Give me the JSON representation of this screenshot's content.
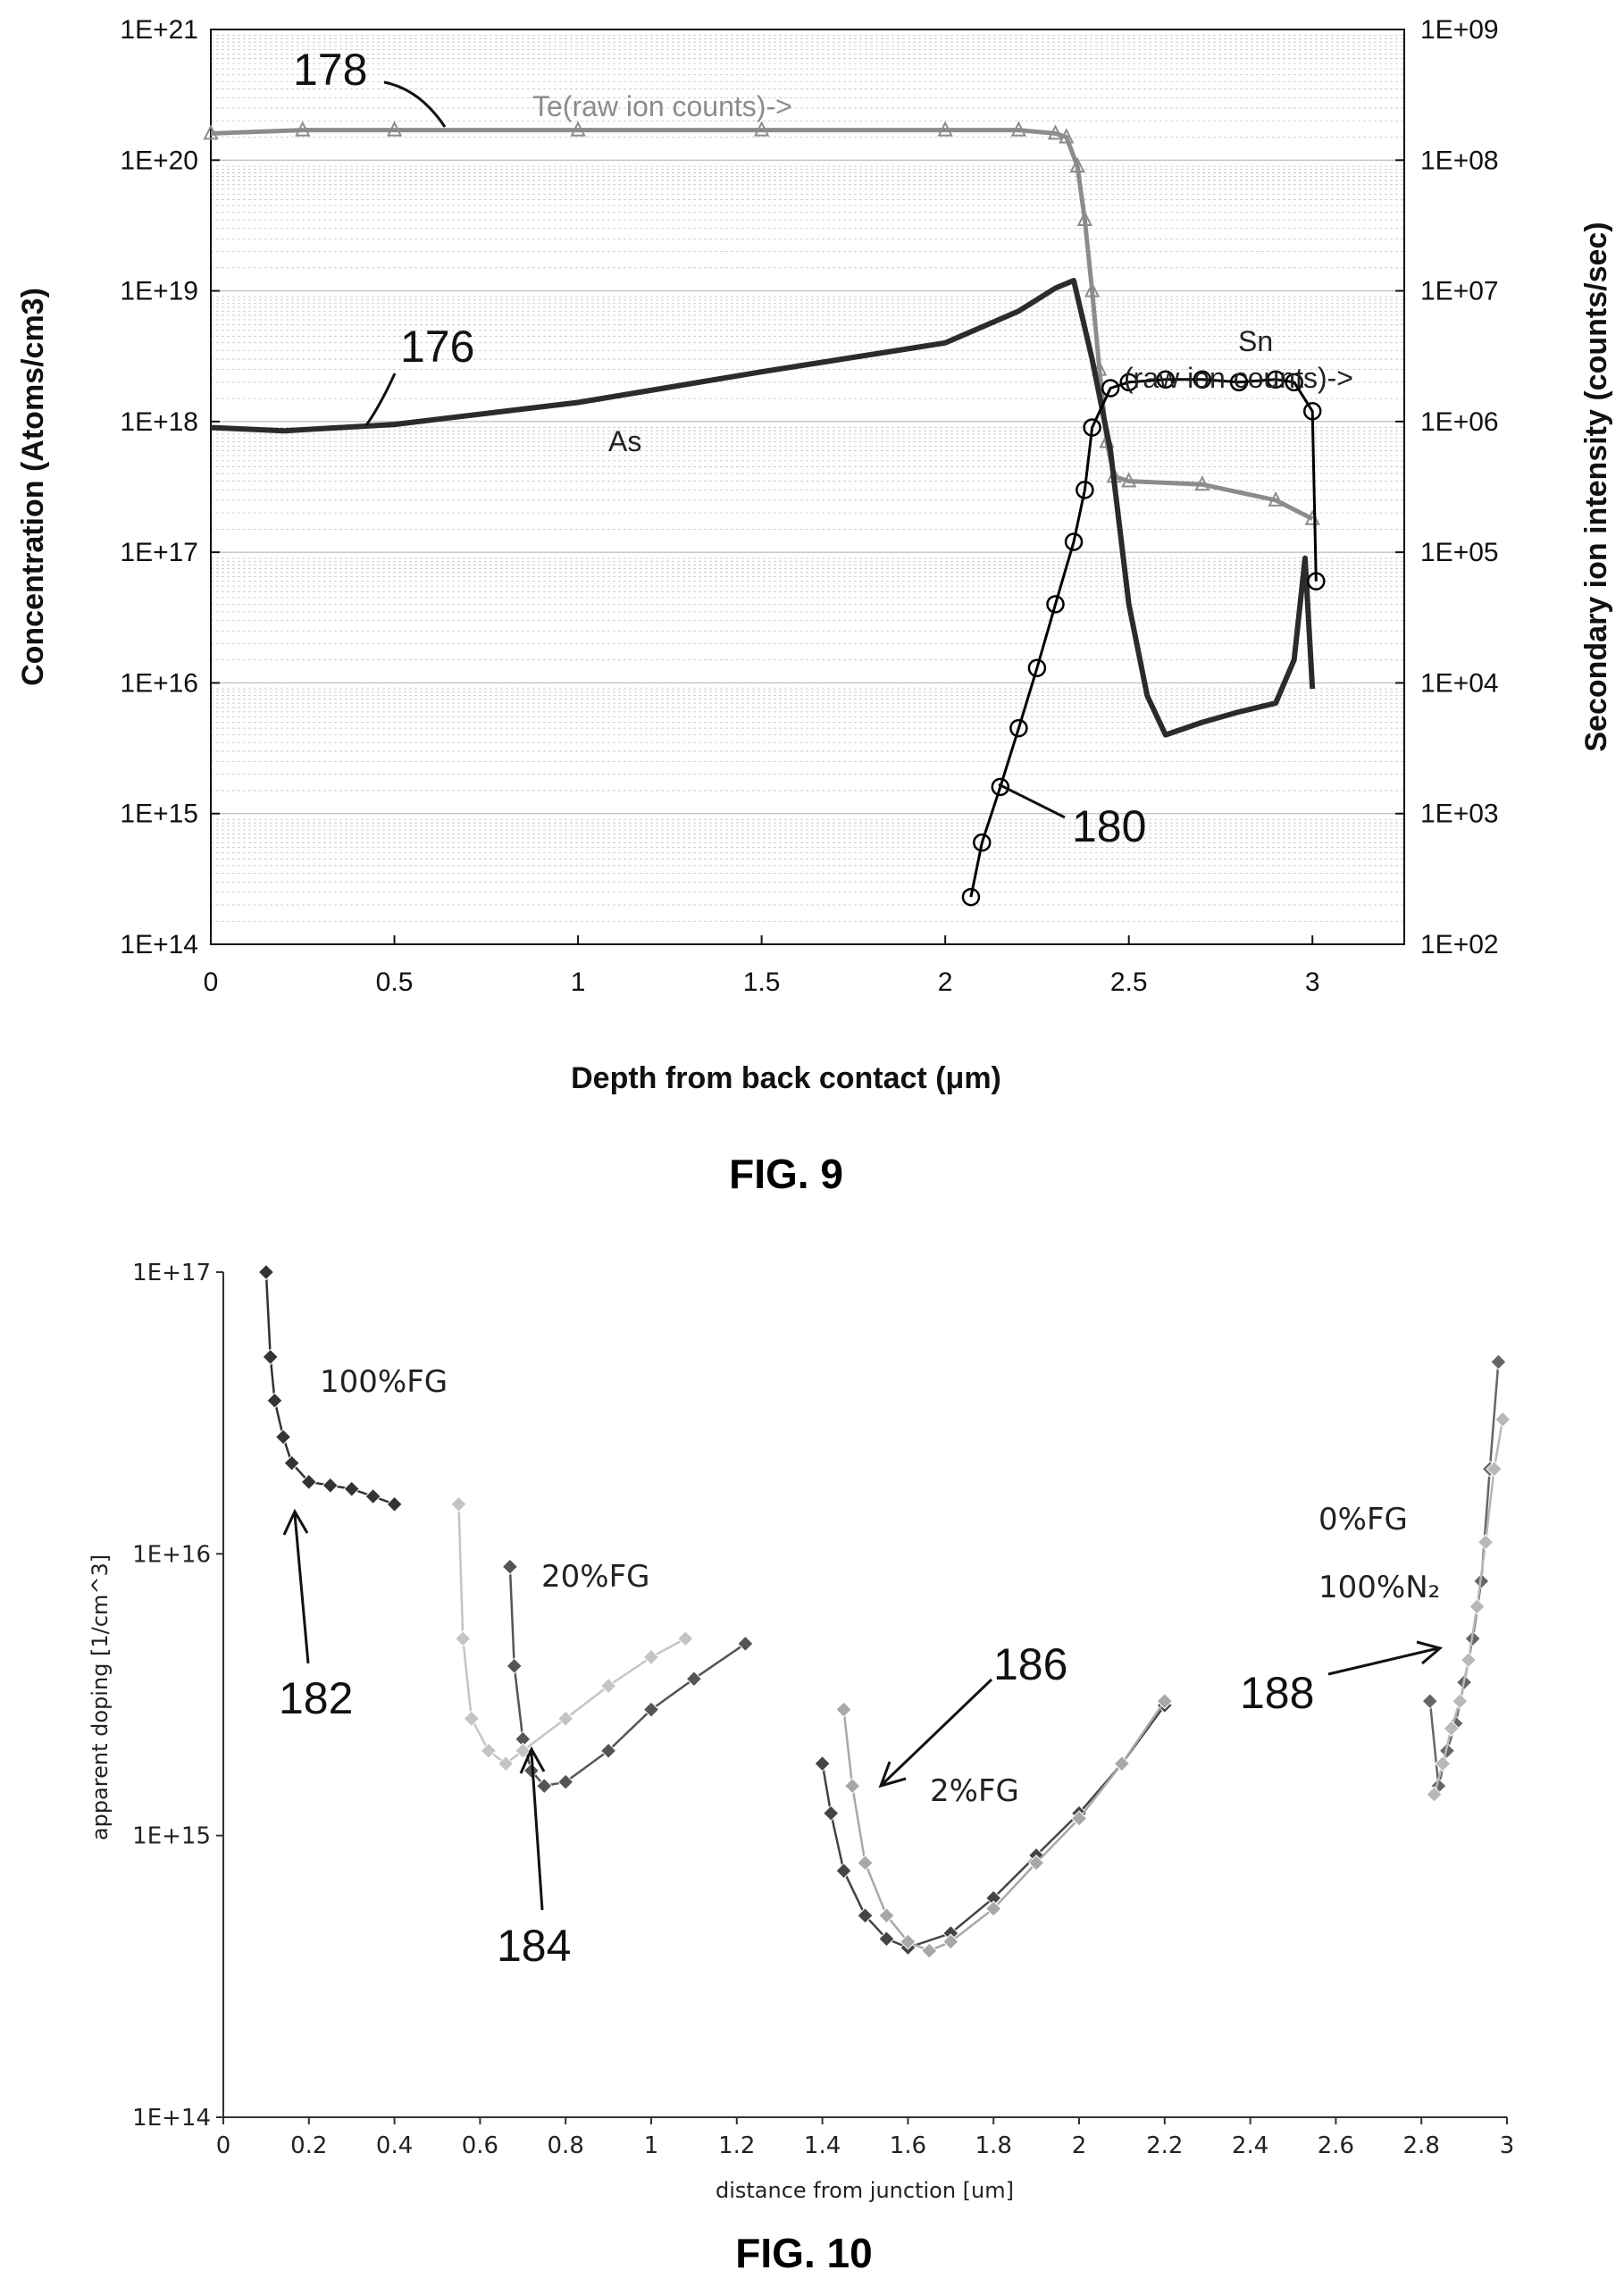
{
  "chart_data": [
    {
      "figure": "FIG. 9",
      "type": "line",
      "title": "",
      "xlabel": "Depth from back contact (μm)",
      "ylabel": "Concentration (Atoms/cm3)",
      "y2label": "Secondary ion intensity (counts/sec)",
      "xlim": [
        0,
        3.25
      ],
      "ylim": [
        100000000000000.0,
        1e+21
      ],
      "y2lim": [
        100,
        1000000000.0
      ],
      "yscale": "log",
      "grid": true,
      "x_ticks": [
        "0",
        "0.5",
        "1",
        "1.5",
        "2",
        "2.5",
        "3"
      ],
      "y_ticks": [
        "1E+14",
        "1E+15",
        "1E+16",
        "1E+17",
        "1E+18",
        "1E+19",
        "1E+20",
        "1E+21"
      ],
      "y2_ticks": [
        "1E+02",
        "1E+03",
        "1E+04",
        "1E+05",
        "1E+06",
        "1E+07",
        "1E+08",
        "1E+09"
      ],
      "series": [
        {
          "name": "Te(raw ion counts)->",
          "ref": "178",
          "color": "#8c8c8c",
          "axis": "right",
          "marker": "triangle",
          "x": [
            0,
            0.25,
            0.5,
            1.0,
            1.5,
            2.0,
            2.2,
            2.3,
            2.33,
            2.36,
            2.38,
            2.4,
            2.42,
            2.44,
            2.46,
            2.5,
            2.7,
            2.9,
            3.0
          ],
          "y": [
            160000000.0,
            170000000.0,
            170000000.0,
            170000000.0,
            170000000.0,
            170000000.0,
            170000000.0,
            160000000.0,
            150000000.0,
            90000000.0,
            35000000.0,
            10000000.0,
            2500000.0,
            700000.0,
            380000.0,
            350000.0,
            330000.0,
            250000.0,
            180000.0
          ]
        },
        {
          "name": "As",
          "ref": "176",
          "color": "#2b2b2b",
          "axis": "left",
          "marker": "none",
          "x": [
            0,
            0.2,
            0.5,
            1.0,
            1.5,
            2.0,
            2.2,
            2.3,
            2.35,
            2.4,
            2.45,
            2.5,
            2.55,
            2.6,
            2.7,
            2.8,
            2.9,
            2.95,
            2.98,
            3.0
          ],
          "y": [
            9e+17,
            8.5e+17,
            9.5e+17,
            1.4e+18,
            2.4e+18,
            4e+18,
            7e+18,
            1.05e+19,
            1.2e+19,
            3e+18,
            6e+17,
            4e+16,
            8000000000000000.0,
            4000000000000000.0,
            5000000000000000.0,
            6000000000000000.0,
            7000000000000000.0,
            1.5e+16,
            9e+16,
            9000000000000000.0
          ]
        },
        {
          "name": "Sn (raw ion counts)->",
          "ref": "180",
          "color": "#000000",
          "axis": "right",
          "marker": "circle",
          "x": [
            2.07,
            2.1,
            2.15,
            2.2,
            2.25,
            2.3,
            2.35,
            2.38,
            2.4,
            2.45,
            2.5,
            2.6,
            2.7,
            2.8,
            2.9,
            2.95,
            3.0,
            3.01
          ],
          "y": [
            230,
            600,
            1600,
            4500,
            13000.0,
            40000.0,
            120000.0,
            300000.0,
            900000.0,
            1800000.0,
            2000000.0,
            2100000.0,
            2100000.0,
            2000000.0,
            2100000.0,
            2000000.0,
            1200000.0,
            60000.0
          ]
        }
      ],
      "annotations": [
        "178",
        "176",
        "180",
        "Te(raw ion counts)->",
        "As",
        "Sn",
        "(raw ion counts)->"
      ]
    },
    {
      "figure": "FIG. 10",
      "type": "scatter",
      "title": "",
      "xlabel": "distance from junction [um]",
      "ylabel": "apparent doping [1/cm^3]",
      "xlim": [
        0,
        3
      ],
      "ylim": [
        100000000000000.0,
        1e+17
      ],
      "yscale": "log",
      "grid": false,
      "x_ticks": [
        "0",
        "0.2",
        "0.4",
        "0.6",
        "0.8",
        "1",
        "1.2",
        "1.4",
        "1.6",
        "1.8",
        "2",
        "2.2",
        "2.4",
        "2.6",
        "2.8",
        "3"
      ],
      "y_ticks": [
        "1E+14",
        "1E+15",
        "1E+16",
        "1E+17"
      ],
      "series": [
        {
          "name": "100%FG",
          "ref": "182",
          "color": "#333333",
          "x": [
            0.1,
            0.11,
            0.12,
            0.14,
            0.16,
            0.2,
            0.25,
            0.3,
            0.35,
            0.4
          ],
          "y": [
            1e+17,
            5e+16,
            3.5e+16,
            2.6e+16,
            2.1e+16,
            1.8e+16,
            1.75e+16,
            1.7e+16,
            1.6e+16,
            1.5e+16
          ]
        },
        {
          "name": "20%FG (dark)",
          "ref": "184",
          "color": "#555555",
          "x": [
            0.67,
            0.68,
            0.7,
            0.72,
            0.75,
            0.8,
            0.9,
            1.0,
            1.1,
            1.22
          ],
          "y": [
            9000000000000000.0,
            4000000000000000.0,
            2200000000000000.0,
            1700000000000000.0,
            1500000000000000.0,
            1550000000000000.0,
            2000000000000000.0,
            2800000000000000.0,
            3600000000000000.0,
            4800000000000000.0
          ]
        },
        {
          "name": "20%FG (light)",
          "ref": "184",
          "color": "#c4c4c4",
          "x": [
            0.55,
            0.56,
            0.58,
            0.62,
            0.66,
            0.7,
            0.8,
            0.9,
            1.0,
            1.08
          ],
          "y": [
            1.5e+16,
            5000000000000000.0,
            2600000000000000.0,
            2000000000000000.0,
            1800000000000000.0,
            2000000000000000.0,
            2600000000000000.0,
            3400000000000000.0,
            4300000000000000.0,
            5000000000000000.0
          ]
        },
        {
          "name": "2%FG (dark)",
          "ref": "186",
          "color": "#444444",
          "x": [
            1.4,
            1.42,
            1.45,
            1.5,
            1.55,
            1.6,
            1.7,
            1.8,
            1.9,
            2.0,
            2.1,
            2.2
          ],
          "y": [
            1800000000000000.0,
            1200000000000000.0,
            750000000000000.0,
            520000000000000.0,
            430000000000000.0,
            400000000000000.0,
            450000000000000.0,
            600000000000000.0,
            850000000000000.0,
            1200000000000000.0,
            1800000000000000.0,
            2900000000000000.0
          ]
        },
        {
          "name": "2%FG (light)",
          "ref": "186",
          "color": "#a8a8a8",
          "x": [
            1.45,
            1.47,
            1.5,
            1.55,
            1.6,
            1.65,
            1.7,
            1.8,
            1.9,
            2.0,
            2.1,
            2.2
          ],
          "y": [
            2800000000000000.0,
            1500000000000000.0,
            800000000000000.0,
            520000000000000.0,
            420000000000000.0,
            390000000000000.0,
            420000000000000.0,
            550000000000000.0,
            800000000000000.0,
            1150000000000000.0,
            1800000000000000.0,
            3000000000000000.0
          ]
        },
        {
          "name": "0%FG 100%N2 (dark)",
          "ref": "188",
          "color": "#666666",
          "x": [
            2.82,
            2.84,
            2.86,
            2.88,
            2.9,
            2.92,
            2.94,
            2.96,
            2.98
          ],
          "y": [
            3000000000000000.0,
            1500000000000000.0,
            2000000000000000.0,
            2500000000000000.0,
            3500000000000000.0,
            5000000000000000.0,
            8000000000000000.0,
            2e+16,
            4.8e+16
          ]
        },
        {
          "name": "0%FG 100%N2 (light)",
          "ref": "188",
          "color": "#b8b8b8",
          "x": [
            2.83,
            2.85,
            2.87,
            2.89,
            2.91,
            2.93,
            2.95,
            2.97,
            2.99
          ],
          "y": [
            1400000000000000.0,
            1800000000000000.0,
            2400000000000000.0,
            3000000000000000.0,
            4200000000000000.0,
            6500000000000000.0,
            1.1e+16,
            2e+16,
            3e+16
          ]
        }
      ],
      "annotations": [
        "100%FG",
        "20%FG",
        "2%FG",
        "0%FG",
        "100%N₂",
        "182",
        "184",
        "186",
        "188"
      ]
    }
  ],
  "figure_captions": {
    "fig9": "FIG. 9",
    "fig10": "FIG. 10"
  },
  "fig9_labels": {
    "ref_178": "178",
    "ref_176": "176",
    "ref_180": "180",
    "te_label": "Te(raw ion counts)->",
    "as_label": "As",
    "sn_label": "Sn",
    "sn_label2": "(raw ion counts)->"
  },
  "fig10_labels": {
    "fg100": "100%FG",
    "fg20": "20%FG",
    "fg2": "2%FG",
    "fg0": "0%FG",
    "n2": "100%N₂",
    "ref_182": "182",
    "ref_184": "184",
    "ref_186": "186",
    "ref_188": "188"
  },
  "colors": {
    "background": "#ffffff",
    "axis": "#111111",
    "grid": "#b9b9b9"
  }
}
